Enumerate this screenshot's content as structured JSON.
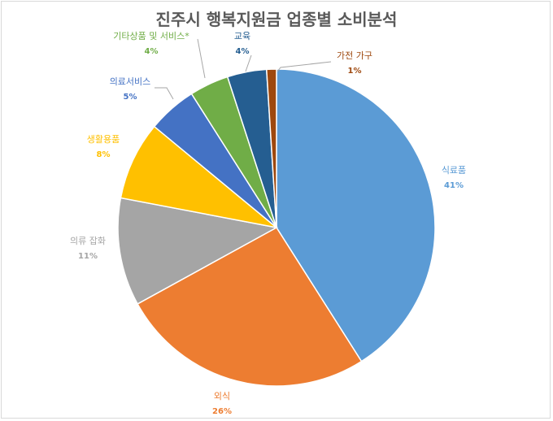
{
  "chart_data": {
    "type": "pie",
    "title": "진주시 행복지원금 업종별 소비분석",
    "slices": [
      {
        "label": "식료품",
        "value": 41,
        "pct_label": "41%",
        "color": "#5B9BD5"
      },
      {
        "label": "외식",
        "value": 26,
        "pct_label": "26%",
        "color": "#ED7D31"
      },
      {
        "label": "의류 잡화",
        "value": 11,
        "pct_label": "11%",
        "color": "#A5A5A5"
      },
      {
        "label": "생활용품",
        "value": 8,
        "pct_label": "8%",
        "color": "#FFC000"
      },
      {
        "label": "의료서비스",
        "value": 5,
        "pct_label": "5%",
        "color": "#4472C4"
      },
      {
        "label": "기타상품 및 서비스*",
        "value": 4,
        "pct_label": "4%",
        "color": "#70AD47"
      },
      {
        "label": "교육",
        "value": 4,
        "pct_label": "4%",
        "color": "#255E91"
      },
      {
        "label": "가전 가구",
        "value": 1,
        "pct_label": "1%",
        "color": "#9E480E"
      }
    ],
    "label_colors": [
      "#5B9BD5",
      "#ED7D31",
      "#A5A5A5",
      "#FFC000",
      "#4472C4",
      "#70AD47",
      "#255E91",
      "#9E480E"
    ],
    "legend": "none",
    "labels": "outside with leader lines"
  }
}
